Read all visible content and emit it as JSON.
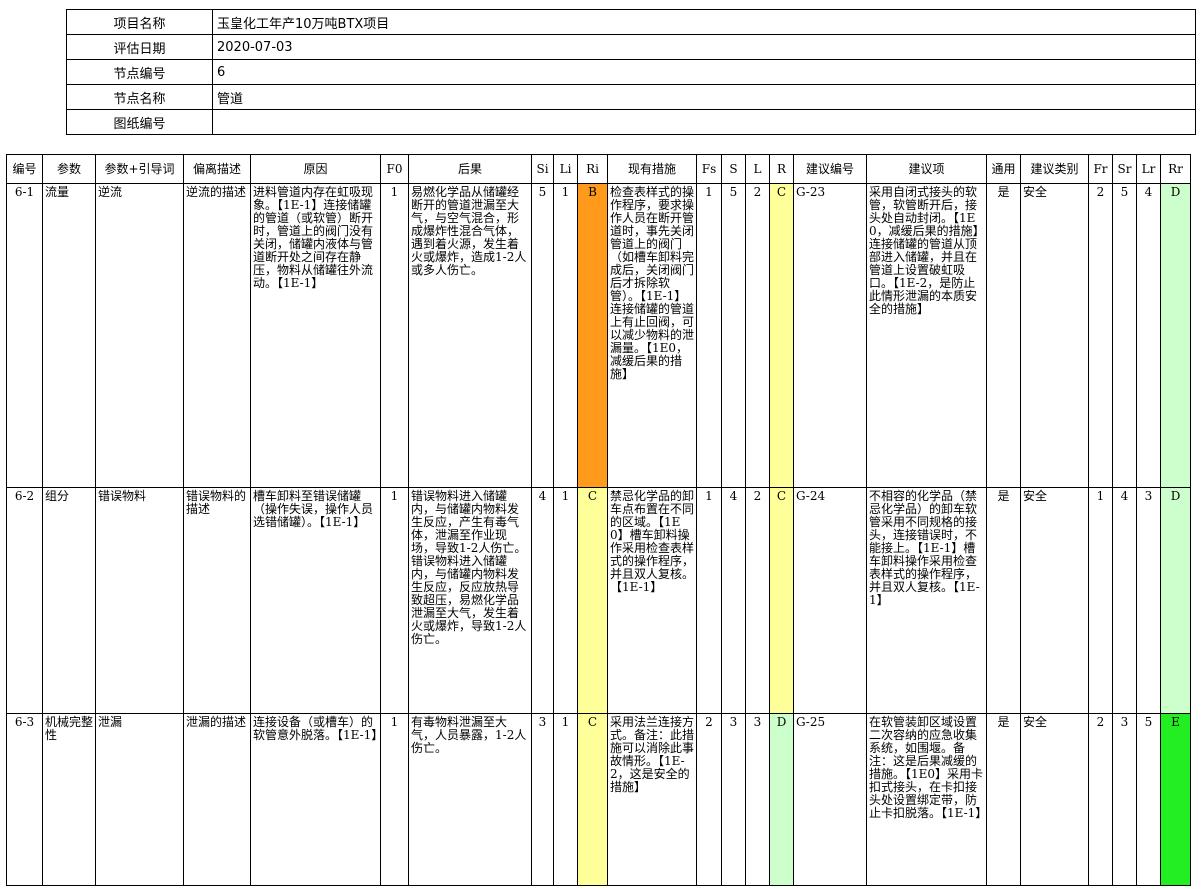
{
  "header": {
    "rows": [
      {
        "label": "项目名称",
        "value": "玉皇化工年产10万吨BTX项目"
      },
      {
        "label": "评估日期",
        "value": "2020-07-03"
      },
      {
        "label": "节点编号",
        "value": "6"
      },
      {
        "label": "节点名称",
        "value": "管道"
      },
      {
        "label": "图纸编号",
        "value": ""
      }
    ]
  },
  "table": {
    "columns": [
      "编号",
      "参数",
      "参数+引导词",
      "偏离描述",
      "原因",
      "F0",
      "后果",
      "Si",
      "Li",
      "Ri",
      "现有措施",
      "Fs",
      "S",
      "L",
      "R",
      "建议编号",
      "建议项",
      "通用",
      "建议类别",
      "Fr",
      "Sr",
      "Lr",
      "Rr"
    ],
    "rows": [
      [
        "6-1",
        "流量",
        "逆流",
        "逆流的描述",
        "进料管道内存在虹吸现象。【1E-1】连接储罐的管道（或软管）断开时，管道上的阀门没有关闭，储罐内液体与管道断开处之间存在静压，物料从储罐往外流动。【1E-1】",
        "1",
        "易燃化学品从储罐经断开的管道泄漏至大气，与空气混合，形成爆炸性混合气体，遇到着火源，发生着火或爆炸，造成1-2人或多人伤亡。",
        "5",
        "1",
        "B",
        "检查表样式的操作程序，要求操作人员在断开管道时，事先关闭管道上的阀门（如槽车卸料完成后，关闭阀门后才拆除软管）。【1E-1】连接储罐的管道上有止回阀，可以减少物料的泄漏量。【1E0，减缓后果的措施】",
        "1",
        "5",
        "2",
        "C",
        "G-23",
        "采用自闭式接头的软管，软管断开后，接头处自动封闭。【1E0，减缓后果的措施】连接储罐的管道从顶部进入储罐，并且在管道上设置破虹吸口。【1E-2，是防止此情形泄漏的本质安全的措施】",
        "是",
        "安全",
        "2",
        "5",
        "4",
        "D"
      ],
      [
        "6-2",
        "组分",
        "错误物料",
        "错误物料的描述",
        "槽车卸料至错误储罐（操作失误，操作人员选错储罐）。【1E-1】",
        "1",
        "错误物料进入储罐内，与储罐内物料发生反应，产生有毒气体，泄漏至作业现场，导致1-2人伤亡。错误物料进入储罐内，与储罐内物料发生反应，反应放热导致超压，易燃化学品泄漏至大气，发生着火或爆炸，导致1-2人伤亡。",
        "4",
        "1",
        "C",
        "禁忌化学品的卸车点布置在不同的区域。【1E0】槽车卸料操作采用检查表样式的操作程序，并且双人复核。【1E-1】",
        "1",
        "4",
        "2",
        "C",
        "G-24",
        "不相容的化学品（禁忌化学品）的卸车软管采用不同规格的接头，连接错误时，不能接上。【1E-1】槽车卸料操作采用检查表样式的操作程序，并且双人复核。【1E-1】",
        "是",
        "安全",
        "1",
        "4",
        "3",
        "D"
      ],
      [
        "6-3",
        "机械完整性",
        "泄漏",
        "泄漏的描述",
        "连接设备（或槽车）的软管意外脱落。【1E-1】",
        "1",
        "有毒物料泄漏至大气，人员暴露，1-2人伤亡。",
        "3",
        "1",
        "C",
        "采用法兰连接方式。备注：此措施可以消除此事故情形。【1E-2，这是安全的措施】",
        "2",
        "3",
        "3",
        "D",
        "G-25",
        "在软管装卸区域设置二次容纳的应急收集系统，如围堰。备注：这是后果减缓的措施。【1E0】采用卡扣式接头，在卡扣接头处设置绑定带，防止卡扣脱落。【1E-1】",
        "是",
        "安全",
        "2",
        "3",
        "5",
        "E"
      ]
    ],
    "risk_colors": {
      "B": "#ff9a1a",
      "C": "#ffff99",
      "D": "#ccffcc",
      "E": "#22ee22"
    }
  }
}
